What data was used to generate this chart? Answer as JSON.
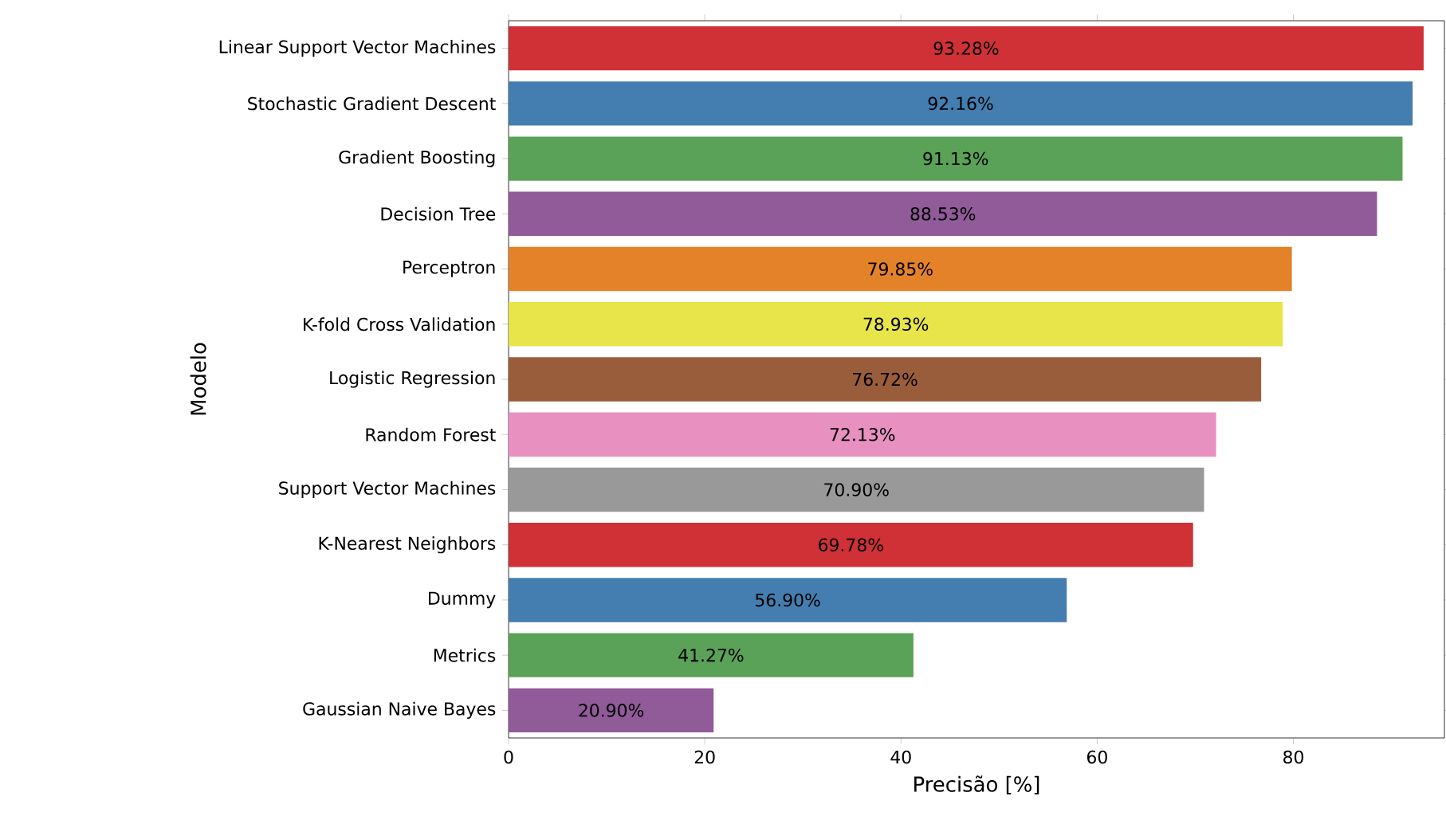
{
  "chart_data": {
    "type": "bar",
    "orientation": "horizontal",
    "xlabel": "Precisão [%]",
    "ylabel": "Modelo",
    "categories": [
      "Linear Support Vector Machines",
      "Stochastic Gradient Descent",
      "Gradient Boosting",
      "Decision Tree",
      "Perceptron",
      "K-fold Cross Validation",
      "Logistic Regression",
      "Random Forest",
      "Support Vector Machines",
      "K-Nearest Neighbors",
      "Dummy",
      "Metrics",
      "Gaussian Naive Bayes"
    ],
    "values": [
      93.28,
      92.16,
      91.13,
      88.53,
      79.85,
      78.93,
      76.72,
      72.13,
      70.9,
      69.78,
      56.9,
      41.27,
      20.9
    ],
    "value_labels": [
      "93.28%",
      "92.16%",
      "91.13%",
      "88.53%",
      "79.85%",
      "78.93%",
      "76.72%",
      "72.13%",
      "70.90%",
      "69.78%",
      "56.90%",
      "41.27%",
      "20.90%"
    ],
    "colors": [
      "#cf3136",
      "#447eb0",
      "#59a257",
      "#915a99",
      "#e4822a",
      "#e7e54a",
      "#9a5d3b",
      "#e891c1",
      "#999999",
      "#cf3136",
      "#447eb0",
      "#59a257",
      "#915a99"
    ],
    "xlim": [
      0,
      95.4
    ],
    "xticks": [
      0,
      20,
      40,
      60,
      80
    ]
  }
}
